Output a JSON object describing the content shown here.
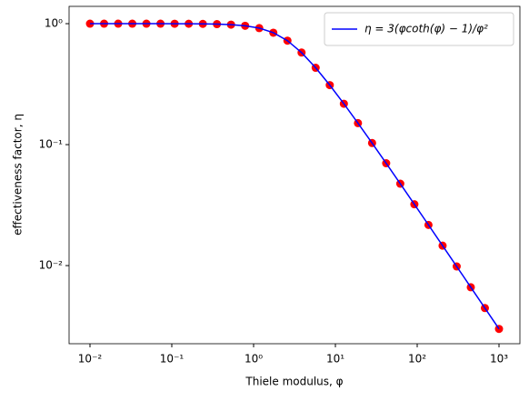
{
  "chart_data": {
    "type": "line",
    "xlabel": "Thiele modulus, φ",
    "ylabel": "effectiveness factor, η",
    "xscale": "log",
    "yscale": "log",
    "x": [
      0.01,
      0.01487,
      0.02212,
      0.0329,
      0.04894,
      0.07279,
      0.10826,
      0.16103,
      0.2395,
      0.35622,
      0.52983,
      0.78805,
      1.1721,
      1.7433,
      2.5929,
      3.8566,
      5.7362,
      8.5317,
      12.69,
      18.874,
      28.072,
      41.753,
      62.102,
      92.367,
      137.38,
      204.34,
      303.92,
      452.04,
      672.34,
      1000
    ],
    "series": [
      {
        "name": "η = 3(φcoth(φ) − 1)/φ²",
        "color": "#0000ff",
        "values": [
          0.99999,
          0.99999,
          0.99997,
          0.99993,
          0.99984,
          0.99965,
          0.99922,
          0.99828,
          0.9962,
          0.9916,
          0.98177,
          0.9609,
          0.919,
          0.8423,
          0.7238,
          0.5769,
          0.4318,
          0.3104,
          0.2178,
          0.1505,
          0.10306,
          0.07013,
          0.04753,
          0.03213,
          0.02168,
          0.01461,
          0.009839,
          0.006622,
          0.004455,
          0.002997
        ]
      },
      {
        "color": "#ff0000",
        "type": "scatter",
        "values": [
          0.99999,
          0.99999,
          0.99997,
          0.99993,
          0.99984,
          0.99965,
          0.99922,
          0.99828,
          0.9962,
          0.9916,
          0.98177,
          0.9609,
          0.919,
          0.8423,
          0.7238,
          0.5769,
          0.4318,
          0.3104,
          0.2178,
          0.1505,
          0.10306,
          0.07013,
          0.04753,
          0.03213,
          0.02168,
          0.01461,
          0.009839,
          0.006622,
          0.004455,
          0.002997
        ]
      }
    ],
    "xlim": [
      0.00555,
      1801
    ],
    "ylim": [
      0.00226,
      1.39
    ],
    "xticks": [
      {
        "value": 0.01,
        "label": "10⁻²"
      },
      {
        "value": 0.1,
        "label": "10⁻¹"
      },
      {
        "value": 1,
        "label": "10⁰"
      },
      {
        "value": 10,
        "label": "10¹"
      },
      {
        "value": 100,
        "label": "10²"
      },
      {
        "value": 1000,
        "label": "10³"
      }
    ],
    "yticks": [
      {
        "value": 0.01,
        "label": "10⁻²"
      },
      {
        "value": 0.1,
        "label": "10⁻¹"
      },
      {
        "value": 1,
        "label": "10⁰"
      }
    ],
    "legend": "upper right",
    "grid": false
  }
}
